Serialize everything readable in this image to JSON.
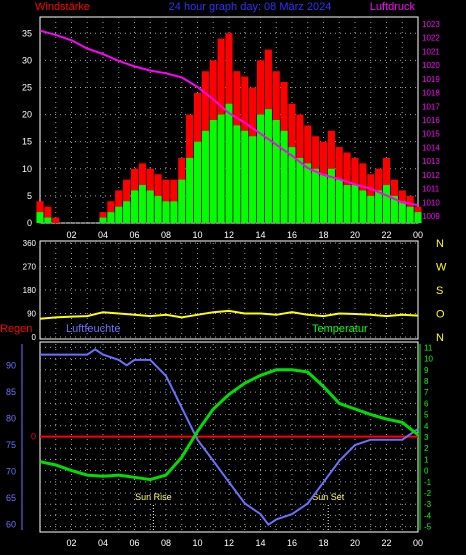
{
  "header": {
    "left_label": "Windstärke",
    "center_label": "24 hour graph day: 08 März 2024",
    "right_label": "Luftdruck"
  },
  "colors": {
    "wind_gust": "#ff0000",
    "wind_avg": "#00ff00",
    "pressure": "#ff00ff",
    "direction": "#ffff00",
    "humidity": "#6f6fff",
    "temperature": "#00dd00",
    "rain": "#ff0000",
    "grid": "#a0a0a0",
    "pressure_ticks": "#ff00ff",
    "compass": "#ffff00",
    "hum_ticks": "#7070ff",
    "temp_ticks": "#00ff00"
  },
  "chart_data": [
    {
      "type": "bar",
      "x_ticks": [
        "02",
        "04",
        "06",
        "08",
        "10",
        "12",
        "14",
        "16",
        "18",
        "20",
        "22",
        "00"
      ],
      "y_left": {
        "label": "Windstärke",
        "ticks": [
          "0",
          "5",
          "10",
          "15",
          "20",
          "25",
          "30",
          "35"
        ],
        "range": [
          0,
          38
        ]
      },
      "y_right": {
        "label": "Luftdruck",
        "ticks": [
          "1009",
          "1010",
          "1011",
          "1012",
          "1013",
          "1014",
          "1015",
          "1016",
          "1017",
          "1018",
          "1019",
          "1020",
          "1021",
          "1022",
          "1023"
        ],
        "range": [
          1008.5,
          1023.5
        ]
      },
      "series": [
        {
          "name": "gust",
          "x": [
            0,
            0.5,
            1,
            1.5,
            2,
            2.5,
            3,
            3.5,
            4,
            4.5,
            5,
            5.5,
            6,
            6.5,
            7,
            7.5,
            8,
            8.5,
            9,
            9.5,
            10,
            10.5,
            11,
            11.5,
            12,
            12.5,
            13,
            13.5,
            14,
            14.5,
            15,
            15.5,
            16,
            16.5,
            17,
            17.5,
            18,
            18.5,
            19,
            19.5,
            20,
            20.5,
            21,
            21.5,
            22,
            22.5,
            23,
            23.5,
            24
          ],
          "values": [
            4,
            3,
            1,
            0,
            0,
            0,
            0,
            0,
            2,
            4,
            6,
            8,
            10,
            11,
            10,
            9,
            8,
            8,
            12,
            20,
            24,
            28,
            30,
            34,
            35,
            28,
            27,
            25,
            30,
            32,
            28,
            26,
            22,
            20,
            18,
            16,
            15,
            17,
            14,
            13,
            12,
            11,
            9,
            10,
            12,
            8,
            6,
            5,
            3
          ]
        },
        {
          "name": "average",
          "x": [
            0,
            0.5,
            1,
            1.5,
            2,
            2.5,
            3,
            3.5,
            4,
            4.5,
            5,
            5.5,
            6,
            6.5,
            7,
            7.5,
            8,
            8.5,
            9,
            9.5,
            10,
            10.5,
            11,
            11.5,
            12,
            12.5,
            13,
            13.5,
            14,
            14.5,
            15,
            15.5,
            16,
            16.5,
            17,
            17.5,
            18,
            18.5,
            19,
            19.5,
            20,
            20.5,
            21,
            21.5,
            22,
            22.5,
            23,
            23.5,
            24
          ],
          "values": [
            2,
            1,
            0,
            0,
            0,
            0,
            0,
            0,
            1,
            2,
            3,
            4,
            6,
            7,
            6,
            5,
            4,
            4,
            8,
            12,
            15,
            17,
            19,
            20,
            22,
            18,
            17,
            16,
            20,
            21,
            19,
            17,
            14,
            12,
            11,
            10,
            9,
            10,
            8,
            7,
            7,
            6,
            5,
            6,
            7,
            5,
            4,
            3,
            2
          ]
        },
        {
          "name": "pressure",
          "x": [
            0,
            1,
            2,
            3,
            4,
            5,
            6,
            7,
            8,
            9,
            10,
            11,
            12,
            13,
            14,
            15,
            16,
            17,
            18,
            19,
            20,
            21,
            22,
            23,
            24
          ],
          "values": [
            1022.5,
            1022.2,
            1021.8,
            1021.2,
            1020.8,
            1020.3,
            1019.9,
            1019.6,
            1019.4,
            1019.1,
            1018.4,
            1017.5,
            1016.5,
            1015.8,
            1015.0,
            1014.2,
            1013.4,
            1012.5,
            1012.0,
            1011.7,
            1011.3,
            1011.0,
            1010.5,
            1010.0,
            1009.8
          ]
        }
      ]
    },
    {
      "type": "line",
      "x_ticks": [
        "02",
        "04",
        "06",
        "08",
        "10",
        "12",
        "14",
        "16",
        "18",
        "20",
        "22",
        "00"
      ],
      "y_left": {
        "ticks": [
          "0",
          "90",
          "180",
          "270",
          "360"
        ],
        "range": [
          0,
          360
        ]
      },
      "compass_labels": [
        "N",
        "W",
        "S",
        "O",
        "N"
      ],
      "series": [
        {
          "name": "direction",
          "x": [
            0,
            1,
            2,
            3,
            4,
            5,
            6,
            7,
            8,
            9,
            10,
            11,
            12,
            13,
            14,
            15,
            16,
            17,
            18,
            19,
            20,
            21,
            22,
            23,
            24
          ],
          "values": [
            70,
            75,
            78,
            80,
            95,
            90,
            85,
            80,
            85,
            75,
            85,
            95,
            100,
            90,
            90,
            85,
            95,
            85,
            80,
            90,
            88,
            85,
            80,
            85,
            82
          ]
        }
      ]
    },
    {
      "type": "line",
      "x_ticks": [
        "02",
        "04",
        "06",
        "08",
        "10",
        "12",
        "14",
        "16",
        "18",
        "20",
        "22",
        "00"
      ],
      "y_left": {
        "label": "Luftfeuchte",
        "ticks": [
          "60",
          "65",
          "70",
          "75",
          "80",
          "85",
          "90"
        ],
        "range": [
          59,
          94
        ]
      },
      "y_right": {
        "label": "Temperatur",
        "ticks": [
          "-5",
          "-4",
          "-3",
          "-2",
          "-1",
          "0",
          "1",
          "2",
          "3",
          "4",
          "5",
          "6",
          "7",
          "8",
          "9",
          "10",
          "11"
        ],
        "range": [
          -5.3,
          11.3
        ]
      },
      "rain_label": "Regen",
      "rain_ticks": [
        "0"
      ],
      "annotations": [
        {
          "text": "Sun Rise",
          "x": 7.2
        },
        {
          "text": "Sun Set",
          "x": 18.3
        }
      ],
      "series": [
        {
          "name": "humidity",
          "x": [
            0,
            1,
            2,
            3,
            3.5,
            4,
            5,
            5.5,
            6,
            7,
            8,
            9,
            10,
            11,
            12,
            13,
            14,
            14.5,
            15,
            16,
            17,
            18,
            19,
            20,
            21,
            22,
            22.5,
            23,
            23.5,
            24
          ],
          "values": [
            92,
            92,
            92,
            92,
            93,
            92,
            91,
            90,
            91,
            91,
            88,
            82,
            76,
            72,
            68,
            64,
            62,
            60,
            61,
            62,
            64,
            68,
            72,
            75,
            76,
            76,
            76,
            76,
            77,
            78
          ]
        },
        {
          "name": "temperature",
          "x": [
            0,
            1,
            2,
            3,
            4,
            5,
            6,
            7,
            8,
            9,
            10,
            11,
            12,
            13,
            14,
            15,
            16,
            17,
            18,
            19,
            20,
            21,
            22,
            23,
            24
          ],
          "values": [
            0.8,
            0.5,
            0,
            -0.4,
            -0.5,
            -0.4,
            -0.6,
            -0.8,
            -0.4,
            1.2,
            3.5,
            5.5,
            6.8,
            7.8,
            8.5,
            9,
            9,
            8.8,
            7.5,
            6,
            5.5,
            5,
            4.6,
            4.3,
            3.2
          ]
        },
        {
          "name": "rain",
          "x": [
            0,
            24
          ],
          "values": [
            0,
            0
          ]
        }
      ]
    }
  ]
}
